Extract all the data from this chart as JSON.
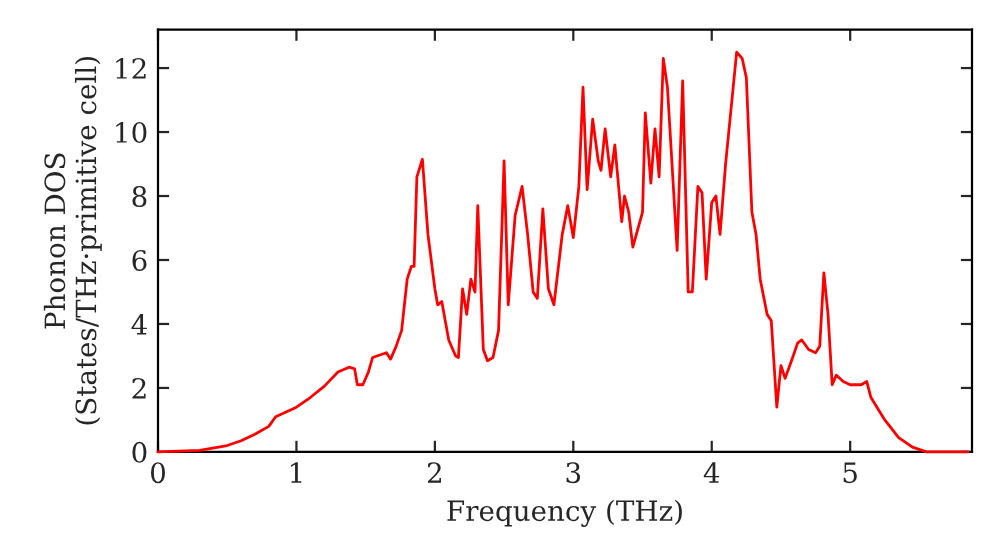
{
  "chart_data": {
    "type": "line",
    "xlabel": "Frequency (THz)",
    "ylabel": "Phonon DOS\n(States/THz·primitive cell)",
    "xlim": [
      0,
      5.88
    ],
    "ylim": [
      0,
      13.2
    ],
    "xticks": [
      0,
      1,
      2,
      3,
      4,
      5
    ],
    "yticks": [
      0,
      2,
      4,
      6,
      8,
      10,
      12
    ],
    "grid": false,
    "legend": false,
    "series": [
      {
        "color": "#ff0000",
        "x": [
          0,
          0.3,
          0.5,
          0.6,
          0.7,
          0.8,
          0.85,
          1.0,
          1.1,
          1.2,
          1.3,
          1.38,
          1.42,
          1.44,
          1.48,
          1.52,
          1.55,
          1.65,
          1.68,
          1.72,
          1.76,
          1.8,
          1.83,
          1.85,
          1.87,
          1.91,
          1.95,
          2.0,
          2.02,
          2.05,
          2.1,
          2.15,
          2.17,
          2.2,
          2.23,
          2.26,
          2.29,
          2.31,
          2.35,
          2.38,
          2.42,
          2.46,
          2.5,
          2.53,
          2.58,
          2.63,
          2.67,
          2.71,
          2.74,
          2.78,
          2.82,
          2.86,
          2.92,
          2.96,
          3.0,
          3.04,
          3.07,
          3.1,
          3.14,
          3.18,
          3.2,
          3.23,
          3.27,
          3.3,
          3.35,
          3.37,
          3.4,
          3.43,
          3.5,
          3.52,
          3.56,
          3.59,
          3.62,
          3.65,
          3.68,
          3.75,
          3.79,
          3.83,
          3.86,
          3.9,
          3.93,
          3.96,
          4.0,
          4.03,
          4.06,
          4.1,
          4.18,
          4.22,
          4.25,
          4.29,
          4.32,
          4.35,
          4.4,
          4.43,
          4.47,
          4.5,
          4.53,
          4.58,
          4.62,
          4.65,
          4.7,
          4.75,
          4.78,
          4.81,
          4.84,
          4.87,
          4.9,
          4.95,
          5.0,
          5.08,
          5.12,
          5.15,
          5.25,
          5.35,
          5.45,
          5.55,
          5.85
        ],
        "values": [
          0,
          0.05,
          0.2,
          0.35,
          0.55,
          0.8,
          1.1,
          1.4,
          1.7,
          2.05,
          2.5,
          2.65,
          2.6,
          2.1,
          2.1,
          2.5,
          2.95,
          3.1,
          2.9,
          3.3,
          3.8,
          5.4,
          5.8,
          5.8,
          8.6,
          9.15,
          6.8,
          5.1,
          4.6,
          4.7,
          3.5,
          3.0,
          2.95,
          5.1,
          4.3,
          5.4,
          5.0,
          7.7,
          3.2,
          2.85,
          2.95,
          3.8,
          9.1,
          4.6,
          7.4,
          8.3,
          6.8,
          5.0,
          4.8,
          7.6,
          5.1,
          4.6,
          6.8,
          7.7,
          6.7,
          8.3,
          11.4,
          8.2,
          10.4,
          9.1,
          8.8,
          10.1,
          8.6,
          9.6,
          7.2,
          8.0,
          7.5,
          6.4,
          7.5,
          10.6,
          8.4,
          10.1,
          8.6,
          12.3,
          11.4,
          6.3,
          11.6,
          5.0,
          5.0,
          8.3,
          8.1,
          5.4,
          7.8,
          8.0,
          6.8,
          9.0,
          12.5,
          12.3,
          11.7,
          7.5,
          6.8,
          5.4,
          4.3,
          4.1,
          1.4,
          2.7,
          2.3,
          2.9,
          3.4,
          3.5,
          3.2,
          3.1,
          3.3,
          5.6,
          4.3,
          2.1,
          2.4,
          2.2,
          2.1,
          2.1,
          2.2,
          1.7,
          1.0,
          0.45,
          0.15,
          0.0,
          0.0
        ]
      }
    ]
  }
}
